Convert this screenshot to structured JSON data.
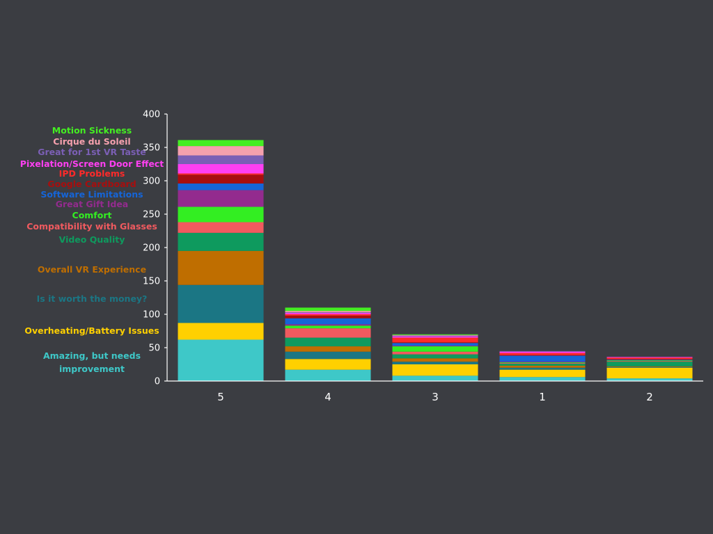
{
  "chart_data": {
    "type": "bar",
    "stacked": true,
    "categories": [
      "5",
      "4",
      "3",
      "1",
      "2"
    ],
    "ylim": [
      0,
      400
    ],
    "yticks": [
      0,
      50,
      100,
      150,
      200,
      250,
      300,
      350,
      400
    ],
    "grid": false,
    "legend_position": "left",
    "series": [
      {
        "name": "Amazing, but needs improvement",
        "legend_lines": [
          "Amazing, but needs",
          "improvement"
        ],
        "color": "#3ec8c8",
        "values": [
          62,
          17,
          8,
          6,
          4
        ]
      },
      {
        "name": "Overheating/Battery Issues",
        "color": "#ffd000",
        "values": [
          25,
          16,
          17,
          11,
          16
        ]
      },
      {
        "name": "Is it worth the money?",
        "color": "#1b7684",
        "values": [
          57,
          11,
          4,
          3,
          1
        ]
      },
      {
        "name": "Overall VR Experience",
        "color": "#bf6e00",
        "values": [
          51,
          8,
          5,
          3,
          1
        ]
      },
      {
        "name": "Video Quality",
        "color": "#0e9a5e",
        "values": [
          27,
          13,
          6,
          3,
          7
        ]
      },
      {
        "name": "Compatibility with Glasses",
        "color": "#f05a5f",
        "values": [
          16,
          14,
          4,
          1,
          1
        ]
      },
      {
        "name": "Comfort",
        "color": "#33ee22",
        "values": [
          23,
          4,
          8,
          1,
          1
        ]
      },
      {
        "name": "Great Gift Idea",
        "color": "#932b8e",
        "values": [
          25,
          2,
          1,
          1,
          0
        ]
      },
      {
        "name": "Software Limitations",
        "color": "#1565d8",
        "values": [
          10,
          9,
          4,
          9,
          1
        ]
      },
      {
        "name": "Google Cardboard",
        "color": "#a80e0e",
        "values": [
          13,
          4,
          1,
          1,
          1
        ]
      },
      {
        "name": "IPD Problems",
        "color": "#ff2a2a",
        "values": [
          2,
          2,
          7,
          3,
          2
        ]
      },
      {
        "name": "Pixelation/Screen Door Effect",
        "color": "#ff3ff2",
        "values": [
          14,
          2,
          2,
          2,
          1
        ]
      },
      {
        "name": "Great for 1st VR Taste",
        "color": "#7b5fb5",
        "values": [
          13,
          1,
          1,
          1,
          0
        ]
      },
      {
        "name": "Cirque du Soleil",
        "color": "#f5a0ad",
        "values": [
          14,
          2,
          1,
          0,
          0
        ]
      },
      {
        "name": "Motion Sickness",
        "color": "#44ee22",
        "values": [
          9,
          5,
          1,
          0,
          0
        ]
      }
    ]
  }
}
